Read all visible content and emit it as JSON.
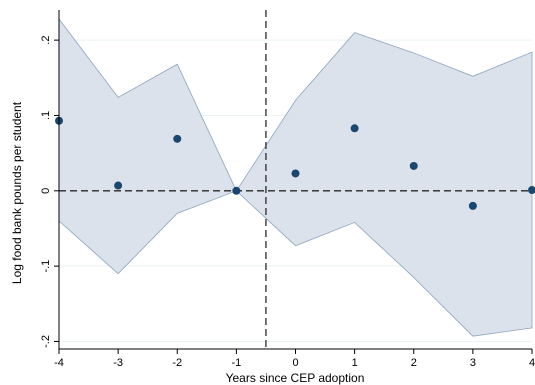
{
  "chart_data": {
    "type": "scatter",
    "title": "",
    "xlabel": "Years since CEP adoption",
    "ylabel": "Log food bank pounds per student",
    "x": [
      -4,
      -3,
      -2,
      -1,
      0,
      1,
      2,
      3,
      4
    ],
    "x_tick_labels": [
      "-4",
      "-3",
      "-2",
      "-1",
      "0",
      "1",
      "2",
      "3",
      "4"
    ],
    "y_ticks": [
      -0.2,
      -0.1,
      0,
      0.1,
      0.2
    ],
    "y_tick_labels": [
      "-.2",
      "-.1",
      "0",
      ".1",
      ".2"
    ],
    "xlim": [
      -4,
      4
    ],
    "ylim": [
      -0.21,
      0.24
    ],
    "series": [
      {
        "type": "scatter",
        "values": [
          0.093,
          0.007,
          0.069,
          0.0,
          0.023,
          0.083,
          0.033,
          -0.02,
          0.001
        ]
      },
      {
        "type": "area",
        "lower": [
          -0.04,
          -0.11,
          -0.03,
          0.0,
          -0.073,
          -0.042,
          -0.115,
          -0.193,
          -0.182
        ],
        "upper": [
          0.228,
          0.124,
          0.168,
          0.0,
          0.12,
          0.21,
          0.183,
          0.152,
          0.184
        ]
      }
    ],
    "reference_lines": [
      {
        "axis": "y",
        "value": 0,
        "style": "dashed"
      },
      {
        "axis": "x",
        "value": -0.5,
        "style": "dashed"
      }
    ],
    "grid": "horizontal",
    "colors": {
      "marker": "#1a476f",
      "band_fill": "#d5dde7",
      "band_stroke": "#8fa4bd",
      "grid": "#eaf2f3",
      "reference": "#2a2a2a"
    }
  }
}
